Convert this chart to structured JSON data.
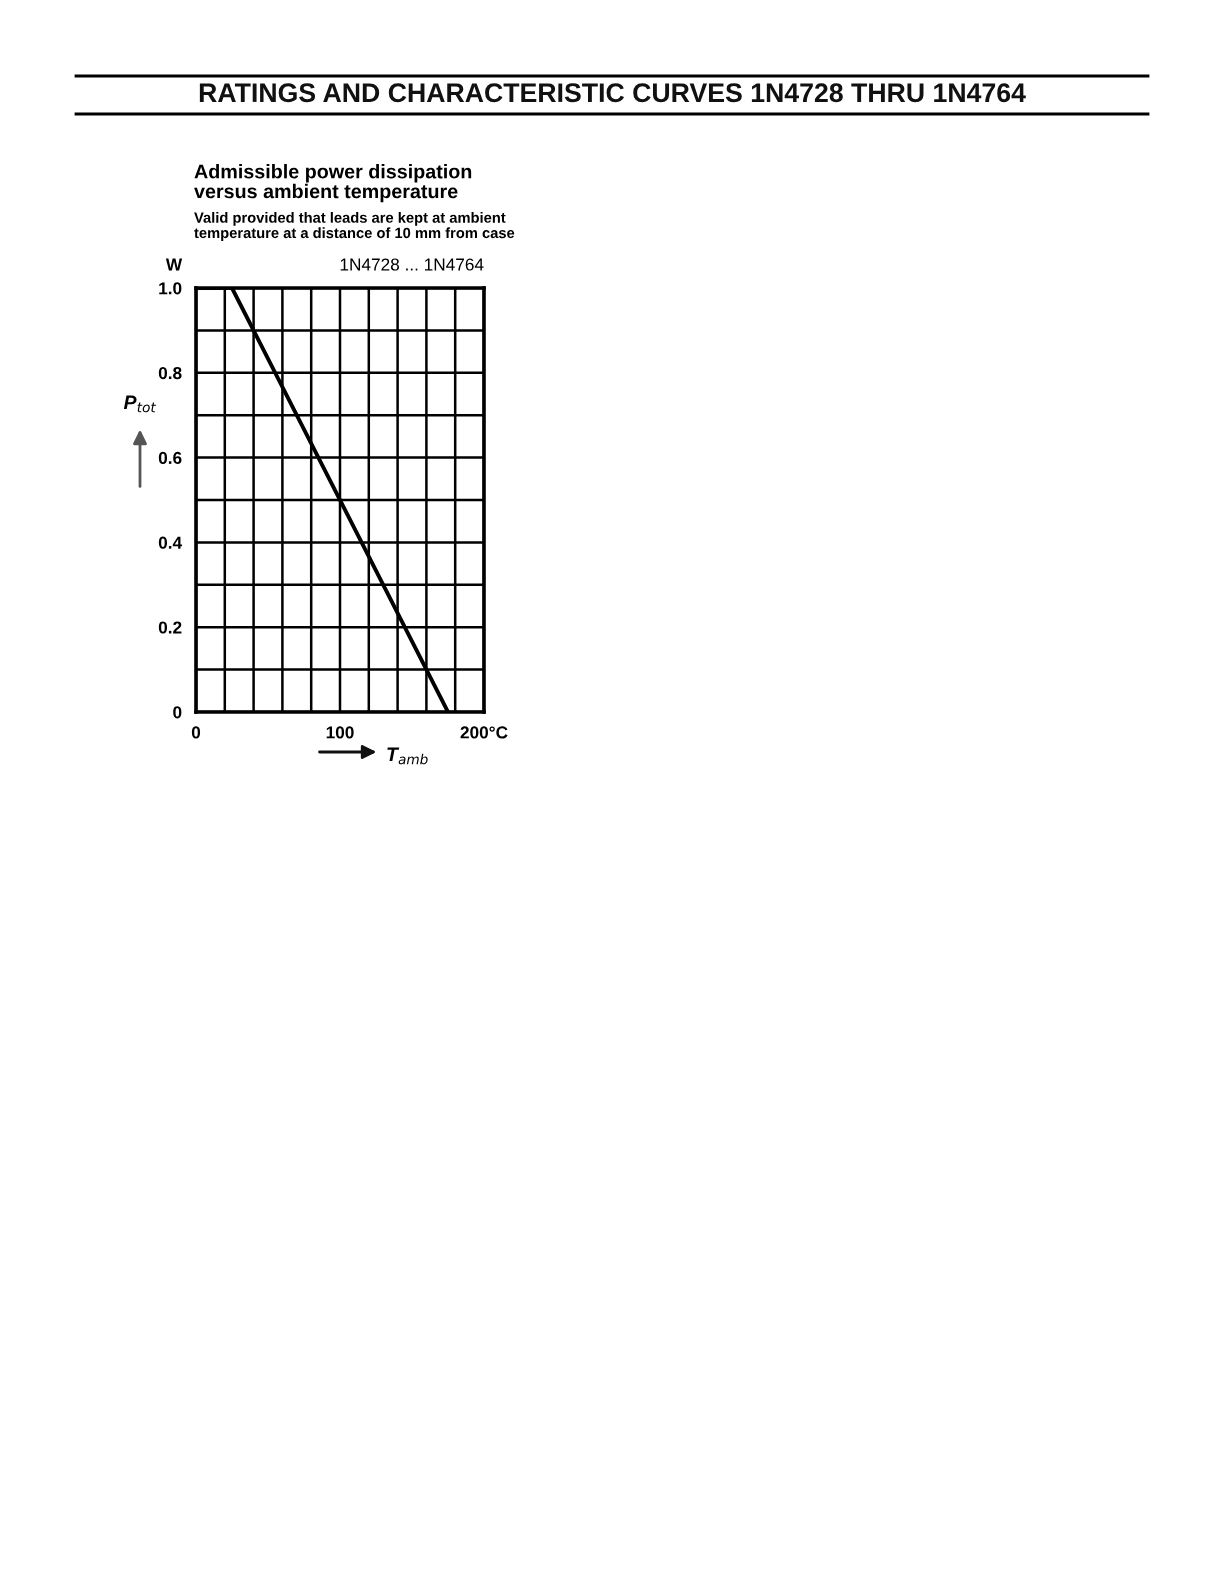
{
  "chart_data": {
    "type": "line",
    "title": "RATINGS AND CHARACTERISTIC CURVES 1N4728 THRU 1N4764",
    "subtitle": "Admissible power dissipation\nversus ambient temperature",
    "xlabel": "T$_{amb}$",
    "ylabel": "P$_{tot}$",
    "annotations": [
      "Valid provided that leads are kept at ambient\ntemperature at a distance of 10 mm from case",
      "W",
      "1N4728 ... 1N4764"
    ],
    "x": [
      0,
      25,
      175
    ],
    "series": [
      {
        "color": "#000000",
        "values": [
          1.0,
          1.0,
          0
        ]
      }
    ],
    "xlim": [
      0,
      200
    ],
    "ylim": [
      0,
      1.0
    ],
    "xticks": [
      0,
      {
        "value": 20,
        "label": null
      },
      {
        "value": 40,
        "label": null
      },
      {
        "value": 60,
        "label": null
      },
      {
        "value": 80,
        "label": null
      },
      100,
      {
        "value": 120,
        "label": null
      },
      {
        "value": 140,
        "label": null
      },
      {
        "value": 160,
        "label": null
      },
      {
        "value": 180,
        "label": null
      },
      {
        "value": 200,
        "label": "200°C"
      }
    ],
    "yticks": [
      0,
      {
        "value": 0.1,
        "label": null
      },
      0.2,
      {
        "value": 0.3,
        "label": null
      },
      0.4,
      {
        "value": 0.5,
        "label": null
      },
      0.6,
      {
        "value": 0.7,
        "label": null
      },
      0.8,
      {
        "value": 0.9,
        "label": null
      },
      {
        "value": 1.0,
        "label": "1.0"
      }
    ],
    "grid": true,
    "marker": "none",
    "line_style": "solid"
  }
}
